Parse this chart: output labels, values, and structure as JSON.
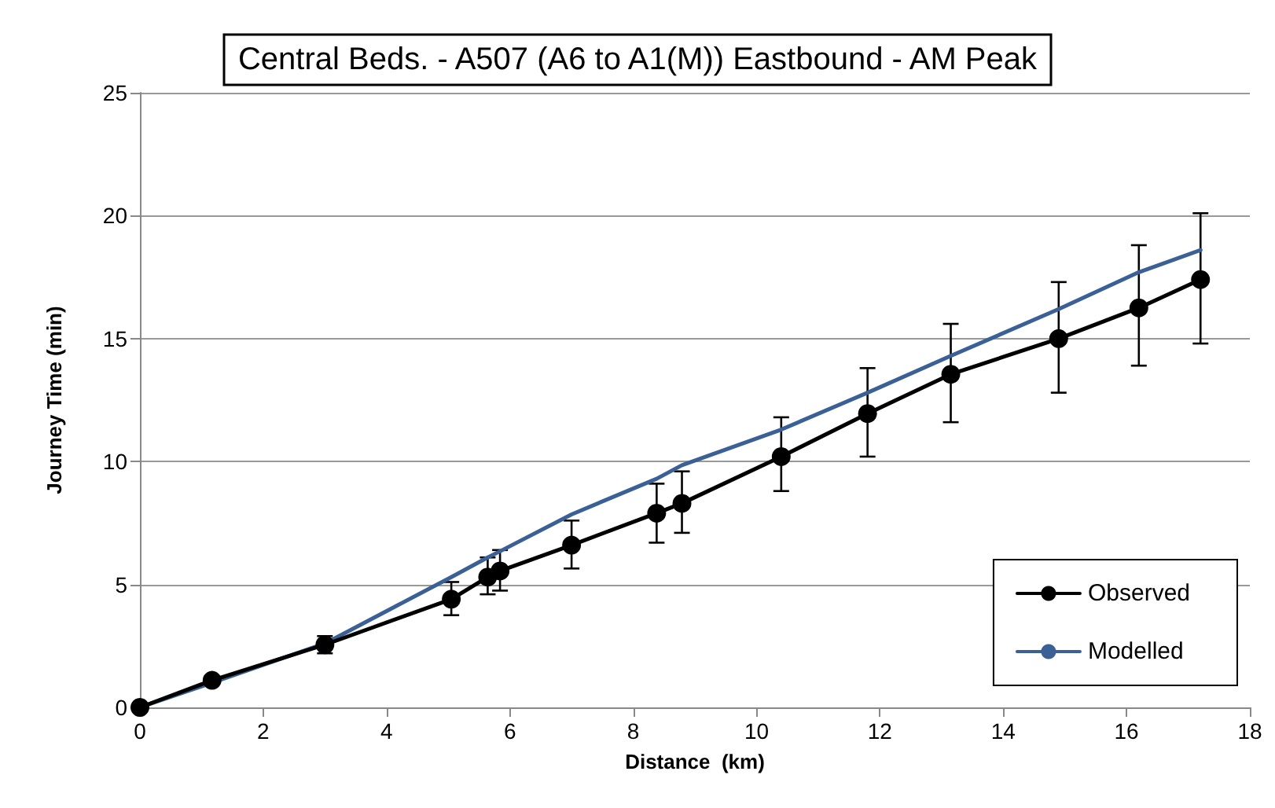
{
  "chart_data": {
    "type": "line",
    "title": "Central Beds. - A507 (A6 to A1(M)) Eastbound - AM Peak",
    "xlabel": "Distance  (km)",
    "ylabel": "Journey Time (min)",
    "x": [
      0,
      1.17,
      3.0,
      5.05,
      5.64,
      5.84,
      7.0,
      8.38,
      8.79,
      10.4,
      11.8,
      13.15,
      14.9,
      16.2,
      17.2
    ],
    "series": [
      {
        "name": "Observed",
        "color": "#000000",
        "marker": "circle",
        "values": [
          0,
          1.1,
          2.55,
          4.4,
          5.3,
          5.55,
          6.6,
          7.9,
          8.3,
          10.2,
          11.95,
          13.55,
          15.0,
          16.25,
          17.4
        ],
        "errors": [
          null,
          [
            0.95,
            1.25
          ],
          [
            2.2,
            2.9
          ],
          [
            3.75,
            5.1
          ],
          [
            4.6,
            6.1
          ],
          [
            4.75,
            6.4
          ],
          [
            5.65,
            7.6
          ],
          [
            6.7,
            9.1
          ],
          [
            7.1,
            9.6
          ],
          [
            8.8,
            11.8
          ],
          [
            10.2,
            13.8
          ],
          [
            11.6,
            15.6
          ],
          [
            12.8,
            17.3
          ],
          [
            13.9,
            18.8
          ],
          [
            14.8,
            20.1
          ]
        ]
      },
      {
        "name": "Modelled",
        "color": "#3a6096",
        "marker": "none",
        "values": [
          0,
          1.0,
          2.6,
          5.3,
          6.1,
          6.35,
          7.85,
          9.3,
          9.85,
          11.3,
          12.8,
          14.3,
          16.2,
          17.7,
          18.6
        ]
      }
    ],
    "xlim": [
      0,
      18
    ],
    "xticks": [
      0,
      2,
      4,
      6,
      8,
      10,
      12,
      14,
      16,
      18
    ],
    "ylim": [
      0,
      25
    ],
    "yticks": [
      0,
      5,
      10,
      15,
      20,
      25
    ],
    "grid": "y",
    "legend": "bottom right",
    "line_style": "solid"
  }
}
